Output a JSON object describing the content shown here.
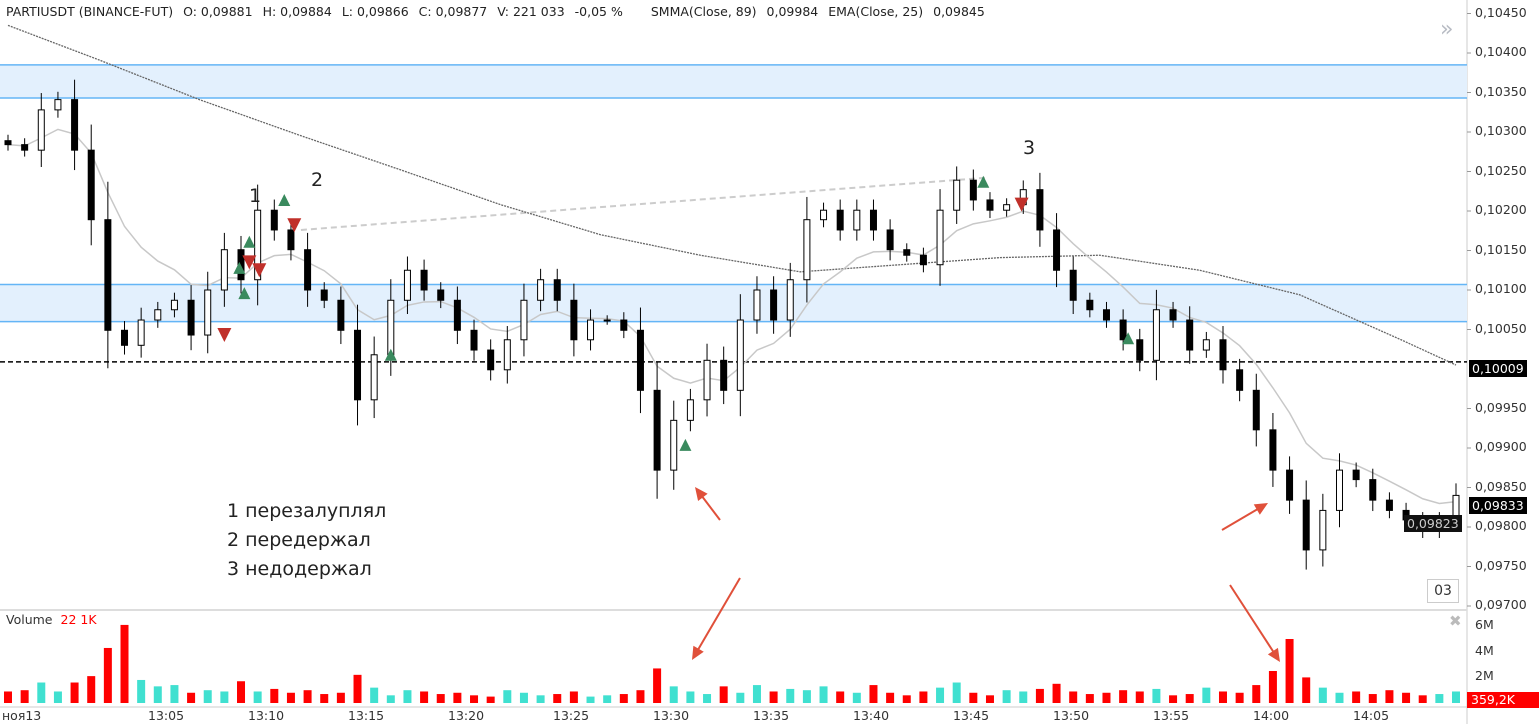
{
  "header": {
    "symbol": "PARTIUSDT (BINANCE-FUT)",
    "open": "O: 0,09881",
    "high": "H: 0,09884",
    "low": "L: 0,09866",
    "close": "C: 0,09877",
    "volume": "V: 221 033",
    "change": "-0,05 %",
    "smma_label": "SMMA(Close, 89)",
    "smma_value": "0,09984",
    "ema_label": "EMA(Close, 25)",
    "ema_value": "0,09845"
  },
  "volume_pane": {
    "title": "Volume",
    "value": "22 1K",
    "last_tag": "359,2K",
    "axis_ticks": [
      "6M",
      "4M",
      "2M"
    ]
  },
  "price_axis": {
    "ticks": [
      "0,10450",
      "0,10400",
      "0,10350",
      "0,10300",
      "0,10250",
      "0,10200",
      "0,10150",
      "0,10100",
      "0,10050",
      "0,09950",
      "0,09900",
      "0,09850",
      "0,09800",
      "0,09750",
      "0,09700"
    ]
  },
  "price_tags": {
    "level": "0,10009",
    "last": "0,09833",
    "last2": "0,09823"
  },
  "time_axis": {
    "ticks": [
      "ноя13",
      "13:05",
      "13:10",
      "13:15",
      "13:20",
      "13:25",
      "13:30",
      "13:35",
      "13:40",
      "13:45",
      "13:50",
      "13:55",
      "14:00",
      "14:05"
    ]
  },
  "annotations": {
    "n1": "1",
    "n2": "2",
    "n3": "3",
    "legend": [
      "1 перезалуплял",
      "2 передержал",
      "3 недодержал"
    ],
    "box": "03"
  },
  "colors": {
    "up_volume": "#40e0d0",
    "down_volume": "#ff0000",
    "zone": "#e3f0fd",
    "zone_border": "#64b5f6",
    "buy_marker": "#3a8a5e",
    "sell_marker": "#c0302a",
    "arrow": "#e0503a"
  },
  "chart_data": {
    "type": "candlestick",
    "title": "PARTIUSDT (BINANCE-FUT)",
    "ylim": [
      0.097,
      0.1045
    ],
    "volume_ylim_millions": [
      0,
      7
    ],
    "closes": [
      0.10284,
      0.10277,
      0.10328,
      0.10341,
      0.10277,
      0.10189,
      0.10049,
      0.1003,
      0.10062,
      0.10075,
      0.10087,
      0.10043,
      0.101,
      0.10151,
      0.10113,
      0.10201,
      0.10176,
      0.10151,
      0.101,
      0.10087,
      0.10049,
      0.09961,
      0.10018,
      0.10087,
      0.10125,
      0.101,
      0.10087,
      0.10049,
      0.10024,
      0.09999,
      0.10037,
      0.10087,
      0.10113,
      0.10087,
      0.10037,
      0.10062,
      0.10062,
      0.10049,
      0.09973,
      0.09872,
      0.09935,
      0.09961,
      0.10011,
      0.09973,
      0.10062,
      0.101,
      0.10062,
      0.10113,
      0.10189,
      0.10201,
      0.10176,
      0.10201,
      0.10176,
      0.10151,
      0.10144,
      0.10132,
      0.10201,
      0.10239,
      0.10214,
      0.10201,
      0.10208,
      0.10227,
      0.10176,
      0.10125,
      0.10087,
      0.10075,
      0.10062,
      0.10037,
      0.10011,
      0.10075,
      0.10062,
      0.10024,
      0.10037,
      0.09999,
      0.09973,
      0.09923,
      0.09872,
      0.09834,
      0.09771,
      0.09821,
      0.09872,
      0.0986,
      0.09834,
      0.09821,
      0.09809,
      0.09796,
      0.09809,
      0.0984
    ],
    "volumes_millions": [
      0.9,
      1.0,
      1.6,
      0.9,
      1.6,
      2.1,
      4.3,
      6.1,
      1.8,
      1.3,
      1.4,
      0.8,
      1.0,
      0.9,
      1.7,
      0.9,
      1.1,
      0.8,
      1.0,
      0.7,
      0.8,
      2.2,
      1.2,
      0.6,
      1.0,
      0.9,
      0.7,
      0.8,
      0.6,
      0.5,
      1.0,
      0.8,
      0.6,
      0.7,
      0.9,
      0.5,
      0.6,
      0.7,
      1.0,
      2.7,
      1.3,
      0.9,
      0.7,
      1.3,
      0.8,
      1.4,
      0.9,
      1.1,
      1.0,
      1.3,
      0.9,
      0.8,
      1.4,
      0.8,
      0.6,
      0.9,
      1.2,
      1.6,
      0.8,
      0.6,
      1.0,
      0.9,
      1.1,
      1.5,
      0.9,
      0.7,
      0.8,
      1.0,
      0.9,
      1.1,
      0.6,
      0.7,
      1.2,
      0.9,
      0.8,
      1.4,
      2.5,
      5.0,
      2.0,
      1.2,
      0.8,
      0.9,
      0.7,
      1.0,
      0.8,
      0.6,
      0.7,
      0.9
    ],
    "smma_89": [
      [
        0,
        0.10435
      ],
      [
        5.5,
        0.10391
      ],
      [
        11.5,
        0.10341
      ],
      [
        17.5,
        0.10296
      ],
      [
        23.6,
        0.10252
      ],
      [
        29.6,
        0.10208
      ],
      [
        35.6,
        0.1017
      ],
      [
        41.6,
        0.10144
      ],
      [
        47.6,
        0.10123
      ],
      [
        53.6,
        0.10132
      ],
      [
        59.6,
        0.10141
      ],
      [
        65.6,
        0.10144
      ],
      [
        71.6,
        0.10125
      ],
      [
        77.6,
        0.10094
      ],
      [
        83.7,
        0.10037
      ],
      [
        87,
        0.10005
      ]
    ],
    "zones": [
      [
        0.10343,
        0.10385
      ],
      [
        0.1006,
        0.10107
      ]
    ],
    "level_line": 0.10009,
    "trend_line": [
      [
        17.6,
        0.10176
      ],
      [
        58.7,
        0.10242
      ]
    ],
    "buy_markers": [
      [
        13.9,
        0.10128
      ],
      [
        14.5,
        0.10161
      ],
      [
        14.2,
        0.10096
      ],
      [
        16.6,
        0.10214
      ],
      [
        23,
        0.10018
      ],
      [
        40.7,
        0.09904
      ],
      [
        58.6,
        0.10237
      ],
      [
        67.3,
        0.10039
      ]
    ],
    "sell_markers": [
      [
        13,
        0.10043
      ],
      [
        14.5,
        0.10135
      ],
      [
        15.1,
        0.10125
      ],
      [
        17.2,
        0.10182
      ],
      [
        60.9,
        0.10208
      ]
    ]
  }
}
